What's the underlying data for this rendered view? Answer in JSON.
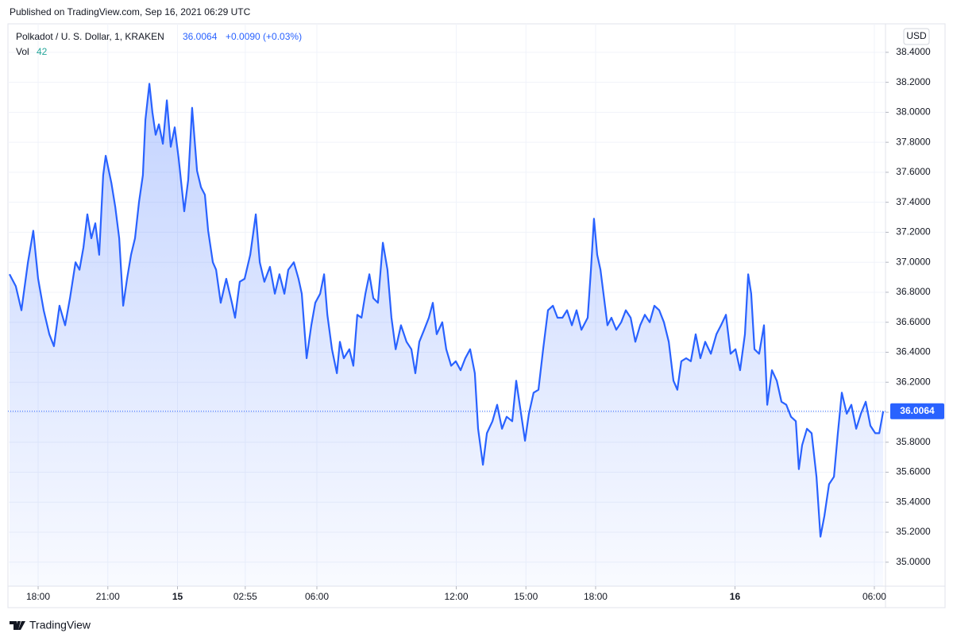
{
  "published": "Published on TradingView.com, Sep 16, 2021 06:29 UTC",
  "brand": "TradingView",
  "chart_data": {
    "type": "area",
    "series": [
      {
        "name": "Polkadot / U. S. Dollar, 1, KRAKEN",
        "color": "#2962ff",
        "values": [
          36.92,
          36.84,
          36.68,
          37.0,
          37.21,
          36.89,
          36.68,
          36.52,
          36.44,
          36.71,
          36.58,
          36.76,
          37.0,
          36.95,
          37.1,
          37.32,
          37.16,
          37.26,
          37.05,
          37.58,
          37.71,
          37.53,
          37.37,
          37.16,
          36.71,
          36.89,
          37.05,
          37.16,
          37.4,
          37.58,
          37.95,
          38.19,
          38.0,
          37.85,
          37.92,
          37.79,
          38.08,
          37.77,
          37.9,
          37.69,
          37.34,
          37.55,
          38.03,
          37.61,
          37.5,
          37.45,
          37.21,
          37.0,
          36.95,
          36.73,
          36.89,
          36.73,
          36.63,
          36.87,
          36.89,
          37.05,
          37.32,
          37.0,
          36.87,
          36.97,
          36.79,
          36.92,
          36.79,
          36.95,
          37.0,
          36.89,
          36.79,
          36.36,
          36.58,
          36.73,
          36.79,
          36.92,
          36.65,
          36.42,
          36.26,
          36.47,
          36.36,
          36.42,
          36.31,
          36.65,
          36.63,
          36.79,
          36.92,
          36.76,
          36.73,
          37.13,
          36.95,
          36.63,
          36.42,
          36.58,
          36.47,
          36.42,
          36.26,
          36.47,
          36.55,
          36.63,
          36.73,
          36.52,
          36.6,
          36.42,
          36.31,
          36.34,
          36.28,
          36.36,
          36.42,
          36.26,
          35.89,
          35.65,
          35.86,
          35.94,
          36.05,
          35.89,
          35.97,
          35.94,
          36.21,
          35.99,
          35.81,
          35.99,
          36.13,
          36.15,
          36.42,
          36.68,
          36.71,
          36.63,
          36.63,
          36.68,
          36.58,
          36.68,
          36.55,
          36.63,
          36.95,
          37.29,
          37.05,
          36.95,
          36.79,
          36.58,
          36.63,
          36.55,
          36.6,
          36.68,
          36.63,
          36.47,
          36.58,
          36.65,
          36.6,
          36.71,
          36.68,
          36.6,
          36.47,
          36.21,
          36.15,
          36.34,
          36.36,
          36.34,
          36.52,
          36.36,
          36.47,
          36.39,
          36.52,
          36.58,
          36.65,
          36.39,
          36.42,
          36.28,
          36.52,
          36.92,
          36.79,
          36.42,
          36.39,
          36.58,
          36.05,
          36.28,
          36.21,
          36.07,
          36.05,
          35.97,
          35.94,
          35.62,
          35.78,
          35.89,
          35.86,
          35.57,
          35.17,
          35.31,
          35.52,
          35.57,
          35.86,
          36.13,
          35.99,
          36.05,
          35.89,
          35.99,
          36.07,
          35.91,
          35.86,
          35.86,
          36.0064
        ]
      }
    ],
    "x": [
      -1.23,
      -0.96,
      -0.72,
      -0.44,
      -0.21,
      0,
      0.24,
      0.48,
      0.68,
      0.92,
      1.16,
      1.37,
      1.61,
      1.78,
      1.95,
      2.12,
      2.29,
      2.46,
      2.63,
      2.8,
      2.91,
      3.15,
      3.32,
      3.49,
      3.66,
      3.83,
      4.0,
      4.17,
      4.34,
      4.51,
      4.62,
      4.79,
      4.92,
      5.06,
      5.2,
      5.37,
      5.54,
      5.71,
      5.88,
      6.05,
      6.29,
      6.46,
      6.63,
      6.84,
      7.01,
      7.18,
      7.32,
      7.52,
      7.66,
      7.86,
      8.1,
      8.34,
      8.48,
      8.68,
      8.89,
      9.13,
      9.37,
      9.54,
      9.74,
      9.98,
      10.19,
      10.39,
      10.6,
      10.77,
      11.01,
      11.21,
      11.35,
      11.56,
      11.76,
      11.93,
      12.14,
      12.31,
      12.45,
      12.65,
      12.86,
      12.99,
      13.16,
      13.4,
      13.57,
      13.74,
      13.92,
      14.09,
      14.26,
      14.43,
      14.63,
      14.84,
      15.04,
      15.21,
      15.39,
      15.62,
      15.86,
      16.07,
      16.24,
      16.41,
      16.62,
      16.82,
      16.99,
      17.16,
      17.4,
      17.57,
      17.78,
      17.98,
      18.19,
      18.39,
      18.6,
      18.8,
      18.94,
      19.15,
      19.32,
      19.56,
      19.76,
      19.97,
      20.17,
      20.41,
      20.58,
      20.79,
      20.96,
      21.13,
      21.33,
      21.54,
      21.74,
      21.95,
      22.16,
      22.36,
      22.57,
      22.77,
      22.98,
      23.18,
      23.39,
      23.66,
      23.8,
      23.93,
      24.07,
      24.21,
      24.34,
      24.51,
      24.68,
      24.89,
      25.1,
      25.3,
      25.51,
      25.71,
      25.92,
      26.12,
      26.33,
      26.53,
      26.74,
      26.94,
      27.15,
      27.35,
      27.52,
      27.69,
      27.9,
      28.1,
      28.31,
      28.51,
      28.72,
      28.96,
      29.2,
      29.4,
      29.61,
      29.81,
      30.02,
      30.22,
      30.43,
      30.57,
      30.7,
      30.84,
      31.04,
      31.25,
      31.39,
      31.59,
      31.8,
      32.0,
      32.21,
      32.41,
      32.62,
      32.75,
      32.89,
      33.1,
      33.3,
      33.51,
      33.68,
      33.85,
      34.05,
      34.26,
      34.43,
      34.6,
      34.81,
      35.01,
      35.22,
      35.42,
      35.63,
      35.83,
      36.04,
      36.21,
      36.38
    ],
    "xlim": [
      -1.3,
      36.48
    ],
    "xticks": [
      {
        "value": 0,
        "label": "18:00"
      },
      {
        "value": 3,
        "label": "21:00"
      },
      {
        "value": 6,
        "label": "15"
      },
      {
        "value": 8.917,
        "label": "02:55"
      },
      {
        "value": 12,
        "label": "06:00"
      },
      {
        "value": 18,
        "label": "12:00"
      },
      {
        "value": 21,
        "label": "15:00"
      },
      {
        "value": 24,
        "label": "18:00"
      },
      {
        "value": 30,
        "label": "16"
      },
      {
        "value": 36,
        "label": "06:00"
      }
    ],
    "ylim": [
      34.84,
      38.59
    ],
    "yticks": [
      {
        "value": 35.0,
        "label": "35.0000"
      },
      {
        "value": 35.2,
        "label": "35.2000"
      },
      {
        "value": 35.4,
        "label": "35.4000"
      },
      {
        "value": 35.6,
        "label": "35.6000"
      },
      {
        "value": 35.8,
        "label": "35.8000"
      },
      {
        "value": 36.0,
        "label": "36.0000"
      },
      {
        "value": 36.2,
        "label": "36.2000"
      },
      {
        "value": 36.4,
        "label": "36.4000"
      },
      {
        "value": 36.6,
        "label": "36.6000"
      },
      {
        "value": 36.8,
        "label": "36.8000"
      },
      {
        "value": 37.0,
        "label": "37.0000"
      },
      {
        "value": 37.2,
        "label": "37.2000"
      },
      {
        "value": 37.4,
        "label": "37.4000"
      },
      {
        "value": 37.6,
        "label": "37.6000"
      },
      {
        "value": 37.8,
        "label": "37.8000"
      },
      {
        "value": 38.0,
        "label": "38.0000"
      },
      {
        "value": 38.2,
        "label": "38.2000"
      },
      {
        "value": 38.4,
        "label": "38.4000"
      }
    ],
    "grid": true,
    "currency": "USD",
    "change": "+0.0090 (+0.03%)",
    "volume": {
      "label": "Vol",
      "value": 42
    }
  }
}
